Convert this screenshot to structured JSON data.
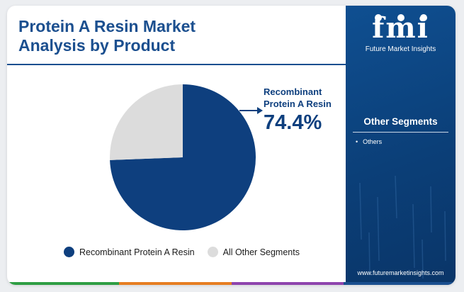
{
  "page": {
    "title": "Protein A Resin Market Analysis by Product"
  },
  "chart_data": {
    "type": "pie",
    "title": "Protein A Resin Market Analysis by Product",
    "slices": [
      {
        "label": "Recombinant Protein A Resin",
        "value": 74.4,
        "color": "#0e3f7e"
      },
      {
        "label": "All Other Segments",
        "value": 25.6,
        "color": "#dcdcdc"
      }
    ],
    "callout": {
      "label": "Recombinant Protein A Resin",
      "value_text": "74.4%"
    },
    "legend": [
      "Recombinant Protein A Resin",
      "All Other Segments"
    ],
    "legend_position": "bottom"
  },
  "callout": {
    "name": "Recombinant Protein A Resin",
    "value": "74.4%"
  },
  "sidebar": {
    "logo_text": "fmi",
    "logo_subtitle": "Future Market Insights",
    "segments_title": "Other Segments",
    "segments": [
      "Others"
    ],
    "website": "www.futuremarketinsights.com"
  },
  "colors": {
    "brand_blue": "#1b4f8f",
    "pie_main": "#0e3f7e",
    "pie_other": "#dcdcdc",
    "bottom_bar": [
      "#2f9e44",
      "#e67e22",
      "#8e44ad",
      "#1b4f8f"
    ]
  }
}
